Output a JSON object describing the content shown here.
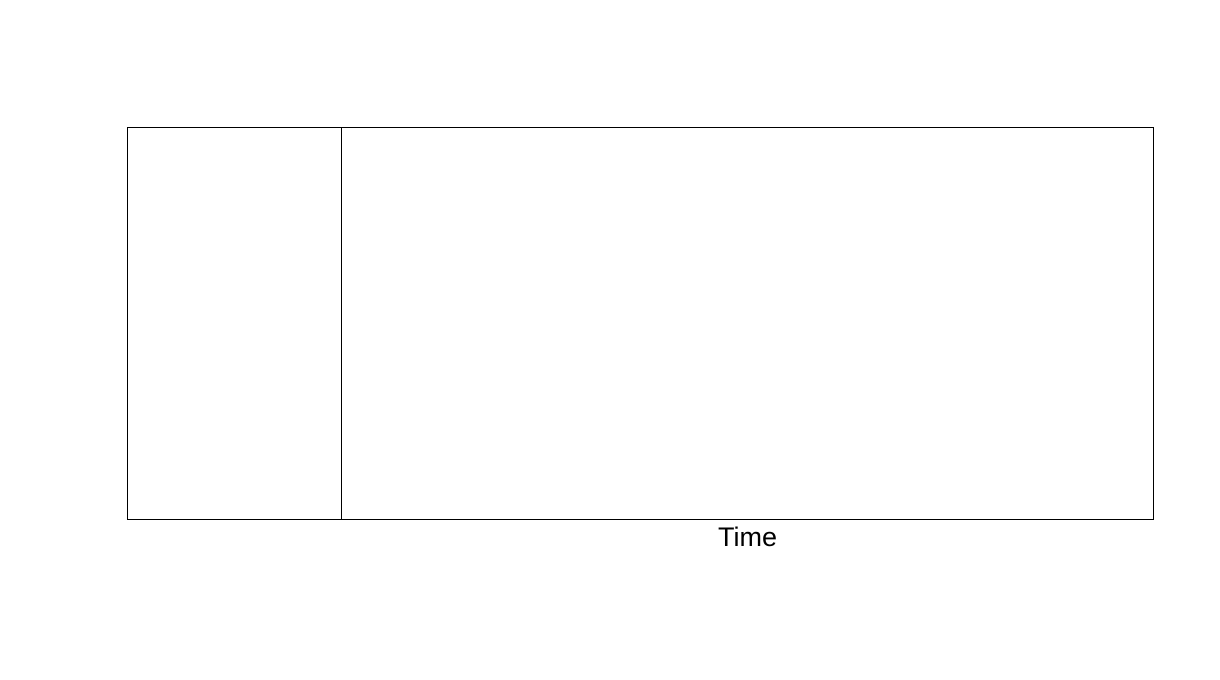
{
  "diagram": {
    "axis_label": "Time",
    "line_color": "#000000",
    "background_color": "#ffffff"
  }
}
